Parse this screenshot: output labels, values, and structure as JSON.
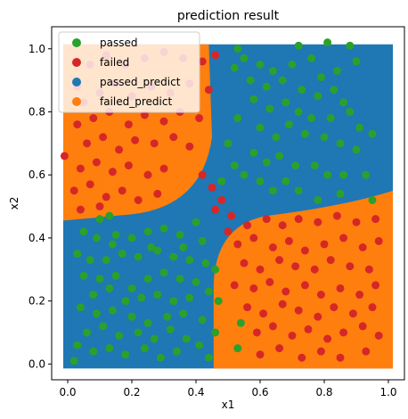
{
  "chart_data": {
    "type": "scatter",
    "title": "prediction result",
    "xlabel": "x1",
    "ylabel": "x2",
    "xlim": [
      -0.05,
      1.05
    ],
    "ylim": [
      -0.05,
      1.07
    ],
    "xticks": [
      0.0,
      0.2,
      0.4,
      0.6,
      0.8,
      1.0
    ],
    "yticks": [
      0.0,
      0.2,
      0.4,
      0.6,
      0.8,
      1.0
    ],
    "xtick_labels": [
      "0.0",
      "0.2",
      "0.4",
      "0.6",
      "0.8",
      "1.0"
    ],
    "ytick_labels": [
      "0.0",
      "0.2",
      "0.4",
      "0.6",
      "0.8",
      "1.0"
    ],
    "grid": false,
    "legend_position": "top-left",
    "prediction_grid": {
      "x_range": [
        0.0,
        1.0
      ],
      "y_range": [
        0.0,
        1.0
      ],
      "boundary_description": "failed_predict where (x1 < 0.45 and x2 > 0.45 outside top-right curve) or (x1 > 0.45 and x2 < 0.45 outside bottom-left curve)"
    },
    "series": [
      {
        "name": "passed",
        "color": "#2ca02c",
        "points": [
          [
            0.53,
            1.0
          ],
          [
            0.72,
            1.01
          ],
          [
            0.81,
            1.02
          ],
          [
            0.88,
            1.01
          ],
          [
            0.55,
            0.97
          ],
          [
            0.6,
            0.95
          ],
          [
            0.64,
            0.93
          ],
          [
            0.7,
            0.95
          ],
          [
            0.76,
            0.97
          ],
          [
            0.79,
            0.91
          ],
          [
            0.84,
            0.93
          ],
          [
            0.9,
            0.96
          ],
          [
            0.52,
            0.94
          ],
          [
            0.57,
            0.9
          ],
          [
            0.62,
            0.88
          ],
          [
            0.67,
            0.9
          ],
          [
            0.73,
            0.87
          ],
          [
            0.78,
            0.85
          ],
          [
            0.83,
            0.87
          ],
          [
            0.86,
            0.83
          ],
          [
            0.58,
            0.84
          ],
          [
            0.63,
            0.81
          ],
          [
            0.68,
            0.83
          ],
          [
            0.72,
            0.8
          ],
          [
            0.76,
            0.78
          ],
          [
            0.82,
            0.78
          ],
          [
            0.88,
            0.8
          ],
          [
            0.91,
            0.75
          ],
          [
            0.95,
            0.73
          ],
          [
            0.53,
            0.78
          ],
          [
            0.6,
            0.75
          ],
          [
            0.65,
            0.72
          ],
          [
            0.69,
            0.76
          ],
          [
            0.74,
            0.73
          ],
          [
            0.8,
            0.72
          ],
          [
            0.85,
            0.7
          ],
          [
            0.9,
            0.68
          ],
          [
            0.58,
            0.67
          ],
          [
            0.62,
            0.64
          ],
          [
            0.66,
            0.66
          ],
          [
            0.71,
            0.63
          ],
          [
            0.77,
            0.63
          ],
          [
            0.81,
            0.6
          ],
          [
            0.86,
            0.6
          ],
          [
            0.93,
            0.6
          ],
          [
            0.55,
            0.6
          ],
          [
            0.6,
            0.58
          ],
          [
            0.64,
            0.55
          ],
          [
            0.68,
            0.58
          ],
          [
            0.72,
            0.55
          ],
          [
            0.5,
            0.7
          ],
          [
            0.52,
            0.63
          ],
          [
            0.48,
            0.58
          ],
          [
            0.85,
            0.54
          ],
          [
            0.78,
            0.52
          ],
          [
            0.95,
            0.52
          ],
          [
            0.1,
            0.46
          ],
          [
            0.13,
            0.47
          ],
          [
            0.05,
            0.42
          ],
          [
            0.09,
            0.4
          ],
          [
            0.14,
            0.38
          ],
          [
            0.2,
            0.4
          ],
          [
            0.25,
            0.42
          ],
          [
            0.3,
            0.43
          ],
          [
            0.35,
            0.41
          ],
          [
            0.4,
            0.45
          ],
          [
            0.42,
            0.39
          ],
          [
            0.03,
            0.35
          ],
          [
            0.07,
            0.33
          ],
          [
            0.12,
            0.33
          ],
          [
            0.17,
            0.35
          ],
          [
            0.22,
            0.34
          ],
          [
            0.28,
            0.36
          ],
          [
            0.33,
            0.34
          ],
          [
            0.38,
            0.33
          ],
          [
            0.43,
            0.32
          ],
          [
            0.05,
            0.28
          ],
          [
            0.1,
            0.27
          ],
          [
            0.15,
            0.28
          ],
          [
            0.2,
            0.24
          ],
          [
            0.25,
            0.27
          ],
          [
            0.3,
            0.29
          ],
          [
            0.35,
            0.27
          ],
          [
            0.4,
            0.26
          ],
          [
            0.44,
            0.23
          ],
          [
            0.08,
            0.22
          ],
          [
            0.13,
            0.24
          ],
          [
            0.18,
            0.2
          ],
          [
            0.23,
            0.21
          ],
          [
            0.28,
            0.22
          ],
          [
            0.33,
            0.2
          ],
          [
            0.38,
            0.21
          ],
          [
            0.04,
            0.18
          ],
          [
            0.09,
            0.16
          ],
          [
            0.14,
            0.17
          ],
          [
            0.2,
            0.15
          ],
          [
            0.25,
            0.13
          ],
          [
            0.31,
            0.15
          ],
          [
            0.36,
            0.16
          ],
          [
            0.42,
            0.14
          ],
          [
            0.06,
            0.1
          ],
          [
            0.11,
            0.12
          ],
          [
            0.16,
            0.09
          ],
          [
            0.22,
            0.1
          ],
          [
            0.27,
            0.08
          ],
          [
            0.32,
            0.11
          ],
          [
            0.37,
            0.08
          ],
          [
            0.41,
            0.06
          ],
          [
            0.03,
            0.06
          ],
          [
            0.08,
            0.04
          ],
          [
            0.13,
            0.05
          ],
          [
            0.18,
            0.03
          ],
          [
            0.24,
            0.05
          ],
          [
            0.29,
            0.02
          ],
          [
            0.34,
            0.04
          ],
          [
            0.44,
            0.02
          ],
          [
            0.02,
            0.01
          ],
          [
            0.15,
            0.41
          ],
          [
            0.26,
            0.37
          ],
          [
            0.36,
            0.37
          ],
          [
            0.46,
            0.3
          ],
          [
            0.47,
            0.2
          ],
          [
            0.46,
            0.1
          ],
          [
            0.53,
            0.05
          ],
          [
            0.54,
            0.13
          ]
        ]
      },
      {
        "name": "failed",
        "color": "#d62728",
        "points": [
          [
            -0.01,
            0.66
          ],
          [
            0.03,
            0.88
          ],
          [
            0.07,
            0.95
          ],
          [
            0.12,
            0.98
          ],
          [
            0.18,
            0.95
          ],
          [
            0.24,
            0.97
          ],
          [
            0.3,
            0.99
          ],
          [
            0.36,
            0.97
          ],
          [
            0.42,
            0.96
          ],
          [
            0.46,
            0.98
          ],
          [
            0.05,
            0.83
          ],
          [
            0.1,
            0.86
          ],
          [
            0.15,
            0.89
          ],
          [
            0.2,
            0.85
          ],
          [
            0.26,
            0.88
          ],
          [
            0.32,
            0.86
          ],
          [
            0.38,
            0.89
          ],
          [
            0.44,
            0.87
          ],
          [
            0.03,
            0.76
          ],
          [
            0.08,
            0.78
          ],
          [
            0.13,
            0.8
          ],
          [
            0.19,
            0.76
          ],
          [
            0.24,
            0.79
          ],
          [
            0.3,
            0.77
          ],
          [
            0.35,
            0.8
          ],
          [
            0.41,
            0.78
          ],
          [
            0.06,
            0.7
          ],
          [
            0.11,
            0.72
          ],
          [
            0.16,
            0.68
          ],
          [
            0.21,
            0.71
          ],
          [
            0.27,
            0.7
          ],
          [
            0.33,
            0.72
          ],
          [
            0.38,
            0.69
          ],
          [
            0.04,
            0.62
          ],
          [
            0.09,
            0.64
          ],
          [
            0.14,
            0.61
          ],
          [
            0.19,
            0.63
          ],
          [
            0.25,
            0.6
          ],
          [
            0.3,
            0.62
          ],
          [
            0.02,
            0.55
          ],
          [
            0.07,
            0.57
          ],
          [
            0.12,
            0.53
          ],
          [
            0.17,
            0.55
          ],
          [
            0.22,
            0.52
          ],
          [
            0.28,
            0.54
          ],
          [
            0.04,
            0.49
          ],
          [
            0.1,
            0.5
          ],
          [
            0.45,
            0.56
          ],
          [
            0.48,
            0.52
          ],
          [
            0.42,
            0.6
          ],
          [
            0.46,
            0.49
          ],
          [
            0.51,
            0.47
          ],
          [
            0.5,
            0.42
          ],
          [
            0.56,
            0.44
          ],
          [
            0.62,
            0.46
          ],
          [
            0.67,
            0.44
          ],
          [
            0.72,
            0.46
          ],
          [
            0.78,
            0.45
          ],
          [
            0.84,
            0.47
          ],
          [
            0.9,
            0.45
          ],
          [
            0.96,
            0.46
          ],
          [
            0.53,
            0.38
          ],
          [
            0.58,
            0.4
          ],
          [
            0.64,
            0.37
          ],
          [
            0.69,
            0.39
          ],
          [
            0.74,
            0.36
          ],
          [
            0.8,
            0.38
          ],
          [
            0.86,
            0.4
          ],
          [
            0.92,
            0.37
          ],
          [
            0.97,
            0.39
          ],
          [
            0.55,
            0.32
          ],
          [
            0.6,
            0.3
          ],
          [
            0.66,
            0.33
          ],
          [
            0.71,
            0.31
          ],
          [
            0.77,
            0.3
          ],
          [
            0.82,
            0.33
          ],
          [
            0.88,
            0.31
          ],
          [
            0.94,
            0.3
          ],
          [
            0.52,
            0.25
          ],
          [
            0.58,
            0.24
          ],
          [
            0.63,
            0.26
          ],
          [
            0.68,
            0.23
          ],
          [
            0.74,
            0.25
          ],
          [
            0.79,
            0.22
          ],
          [
            0.85,
            0.24
          ],
          [
            0.91,
            0.22
          ],
          [
            0.96,
            0.25
          ],
          [
            0.56,
            0.18
          ],
          [
            0.61,
            0.16
          ],
          [
            0.67,
            0.19
          ],
          [
            0.72,
            0.17
          ],
          [
            0.78,
            0.15
          ],
          [
            0.83,
            0.18
          ],
          [
            0.89,
            0.16
          ],
          [
            0.95,
            0.18
          ],
          [
            0.59,
            0.1
          ],
          [
            0.64,
            0.12
          ],
          [
            0.7,
            0.09
          ],
          [
            0.75,
            0.11
          ],
          [
            0.81,
            0.08
          ],
          [
            0.86,
            0.1
          ],
          [
            0.92,
            0.12
          ],
          [
            0.97,
            0.09
          ],
          [
            0.6,
            0.03
          ],
          [
            0.66,
            0.05
          ],
          [
            0.73,
            0.02
          ],
          [
            0.79,
            0.04
          ],
          [
            0.85,
            0.02
          ],
          [
            0.93,
            0.04
          ]
        ]
      },
      {
        "name": "passed_predict",
        "color": "#1f77b4"
      },
      {
        "name": "failed_predict",
        "color": "#ff7f0e"
      }
    ]
  }
}
